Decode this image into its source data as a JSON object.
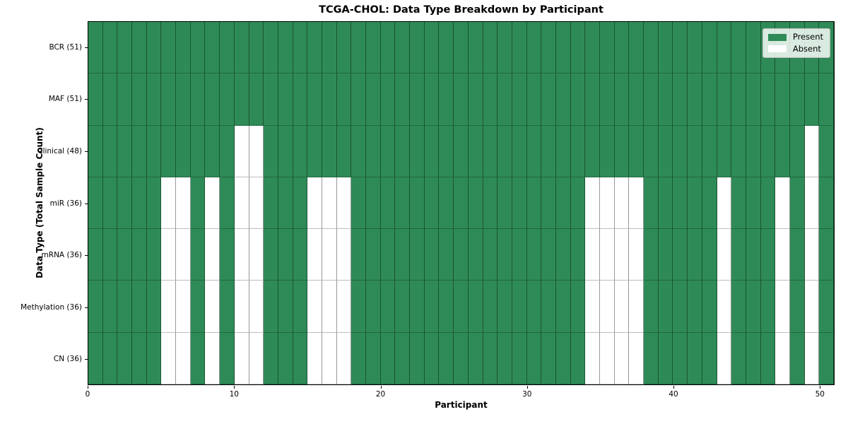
{
  "figure": {
    "background": "#ffffff"
  },
  "chart_data": {
    "type": "heatmap",
    "title": "TCGA-CHOL: Data Type Breakdown by Participant",
    "xlabel": "Participant",
    "ylabel": "Data Type (Total Sample Count)",
    "x_range": [
      0,
      51
    ],
    "n_participants": 51,
    "x_ticks": [
      0,
      10,
      20,
      30,
      40,
      50
    ],
    "grid": true,
    "colors": {
      "present": "#2e8b57",
      "absent": "#ffffff",
      "spine": "#000000"
    },
    "legend": {
      "position": "upper-right",
      "items": [
        {
          "label": "Present",
          "color": "#2e8b57"
        },
        {
          "label": "Absent",
          "color": "#ffffff"
        }
      ]
    },
    "rows": [
      {
        "label": "BCR (51)",
        "data_type": "BCR",
        "present_count": 51,
        "absent_participants": []
      },
      {
        "label": "MAF (51)",
        "data_type": "MAF",
        "present_count": 51,
        "absent_participants": []
      },
      {
        "label": "Clinical (48)",
        "data_type": "Clinical",
        "present_count": 48,
        "absent_participants": [
          10,
          11,
          49
        ]
      },
      {
        "label": "miR (36)",
        "data_type": "miR",
        "present_count": 36,
        "absent_participants": [
          5,
          6,
          8,
          10,
          11,
          15,
          16,
          17,
          34,
          35,
          36,
          37,
          43,
          47,
          49
        ]
      },
      {
        "label": "mRNA (36)",
        "data_type": "mRNA",
        "present_count": 36,
        "absent_participants": [
          5,
          6,
          8,
          10,
          11,
          15,
          16,
          17,
          34,
          35,
          36,
          37,
          43,
          47,
          49
        ]
      },
      {
        "label": "Methylation (36)",
        "data_type": "Methylation",
        "present_count": 36,
        "absent_participants": [
          5,
          6,
          8,
          10,
          11,
          15,
          16,
          17,
          34,
          35,
          36,
          37,
          43,
          47,
          49
        ]
      },
      {
        "label": "CN (36)",
        "data_type": "CN",
        "present_count": 36,
        "absent_participants": [
          5,
          6,
          8,
          10,
          11,
          15,
          16,
          17,
          34,
          35,
          36,
          37,
          43,
          47,
          49
        ]
      }
    ]
  }
}
